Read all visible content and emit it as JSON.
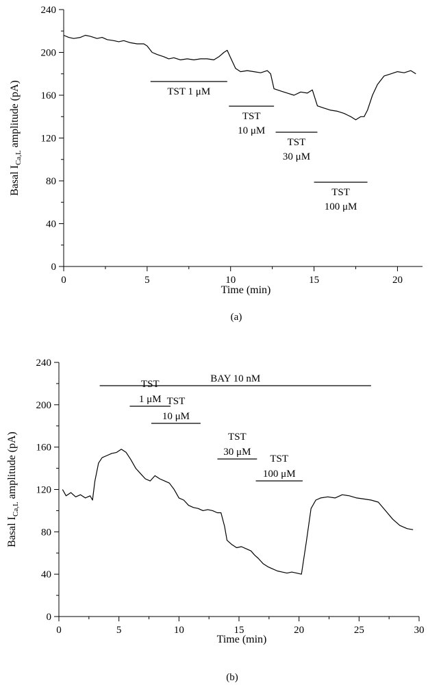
{
  "chart_data": [
    {
      "type": "line",
      "caption": "(a)",
      "xlabel": "Time (min)",
      "ylabel_main": "Basal I",
      "ylabel_sub": "Ca,L",
      "ylabel_tail": " amplitude (pA)",
      "xlim": [
        0,
        21.5
      ],
      "ylim": [
        0,
        240
      ],
      "xticks": [
        0,
        5,
        10,
        15,
        20
      ],
      "yticks": [
        0,
        40,
        80,
        120,
        160,
        200,
        240
      ],
      "series": [
        {
          "x": [
            0,
            0.3,
            0.6,
            1.0,
            1.3,
            1.6,
            2.0,
            2.3,
            2.6,
            3.0,
            3.3,
            3.6,
            4.0,
            4.4,
            4.8,
            5.0,
            5.3,
            5.6,
            6.0,
            6.3,
            6.6,
            7.0,
            7.4,
            7.8,
            8.2,
            8.6,
            9.0,
            9.3,
            9.6,
            9.8,
            10.0,
            10.3,
            10.6,
            11.0,
            11.4,
            11.8,
            12.2,
            12.4,
            12.6,
            13.0,
            13.4,
            13.8,
            14.2,
            14.6,
            14.9,
            15.2,
            15.6,
            16.0,
            16.4,
            16.8,
            17.2,
            17.5,
            17.8,
            18.0,
            18.2,
            18.5,
            18.8,
            19.2,
            19.6,
            20.0,
            20.4,
            20.8,
            21.1
          ],
          "y": [
            216,
            214,
            213,
            214,
            216,
            215,
            213,
            214,
            212,
            211,
            210,
            211,
            209,
            208,
            208,
            206,
            200,
            198,
            196,
            194,
            195,
            193,
            194,
            193,
            194,
            194,
            193,
            196,
            200,
            202,
            195,
            185,
            182,
            183,
            182,
            181,
            183,
            180,
            166,
            164,
            162,
            160,
            163,
            162,
            165,
            150,
            148,
            146,
            145,
            143,
            140,
            137,
            140,
            140,
            146,
            160,
            170,
            178,
            180,
            182,
            181,
            183,
            180
          ]
        }
      ],
      "annotations": [
        {
          "lines": [
            "TST 1 μM"
          ],
          "x1": 5.2,
          "x2": 9.8
        },
        {
          "lines": [
            "TST",
            "10 μM"
          ],
          "x1": 9.9,
          "x2": 12.6
        },
        {
          "lines": [
            "TST",
            "30 μM"
          ],
          "x1": 12.7,
          "x2": 15.2
        },
        {
          "lines": [
            "TST",
            "100 μM"
          ],
          "x1": 15.0,
          "x2": 18.2
        }
      ]
    },
    {
      "type": "line",
      "caption": "(b)",
      "xlabel": "Time (min)",
      "ylabel_main": "Basal I",
      "ylabel_sub": "Ca,L",
      "ylabel_tail": " amplitude (pA)",
      "xlim": [
        0,
        30
      ],
      "ylim": [
        0,
        240
      ],
      "xticks": [
        0,
        5,
        10,
        15,
        20,
        25,
        30
      ],
      "yticks": [
        0,
        40,
        80,
        120,
        160,
        200,
        240
      ],
      "series": [
        {
          "x": [
            0.3,
            0.6,
            1.0,
            1.4,
            1.8,
            2.2,
            2.6,
            2.8,
            3.0,
            3.3,
            3.6,
            4.0,
            4.4,
            4.8,
            5.2,
            5.6,
            6.0,
            6.4,
            6.8,
            7.2,
            7.6,
            8.0,
            8.4,
            8.8,
            9.2,
            9.6,
            10.0,
            10.4,
            10.8,
            11.2,
            11.6,
            12.0,
            12.4,
            12.8,
            13.2,
            13.5,
            13.8,
            14.0,
            14.4,
            14.8,
            15.2,
            15.6,
            16.0,
            16.3,
            16.6,
            17.0,
            17.4,
            17.8,
            18.2,
            18.6,
            19.0,
            19.4,
            19.8,
            20.2,
            20.6,
            21.0,
            21.4,
            21.8,
            22.4,
            23.0,
            23.6,
            24.2,
            24.8,
            25.4,
            26.0,
            26.6,
            27.2,
            27.8,
            28.4,
            29.0,
            29.5
          ],
          "y": [
            120,
            114,
            117,
            113,
            115,
            112,
            114,
            110,
            128,
            145,
            150,
            152,
            154,
            155,
            158,
            155,
            148,
            140,
            135,
            130,
            128,
            133,
            130,
            128,
            126,
            120,
            112,
            110,
            105,
            103,
            102,
            100,
            101,
            100,
            98,
            98,
            85,
            72,
            68,
            65,
            66,
            64,
            62,
            58,
            55,
            50,
            47,
            45,
            43,
            42,
            41,
            42,
            41,
            40,
            70,
            102,
            110,
            112,
            113,
            112,
            115,
            114,
            112,
            111,
            110,
            108,
            100,
            92,
            86,
            83,
            82
          ]
        }
      ],
      "annotations": [
        {
          "lines": [
            "BAY 10 nM"
          ],
          "x1": 3.4,
          "x2": 26.0
        },
        {
          "lines": [
            "TST",
            "1 μM"
          ],
          "x1": 5.9,
          "x2": 9.3
        },
        {
          "lines": [
            "TST",
            "10 μM"
          ],
          "x1": 7.7,
          "x2": 11.8
        },
        {
          "lines": [
            "TST",
            "30 μM"
          ],
          "x1": 13.2,
          "x2": 16.5
        },
        {
          "lines": [
            "TST",
            "100 μM"
          ],
          "x1": 16.4,
          "x2": 20.3
        }
      ]
    }
  ]
}
